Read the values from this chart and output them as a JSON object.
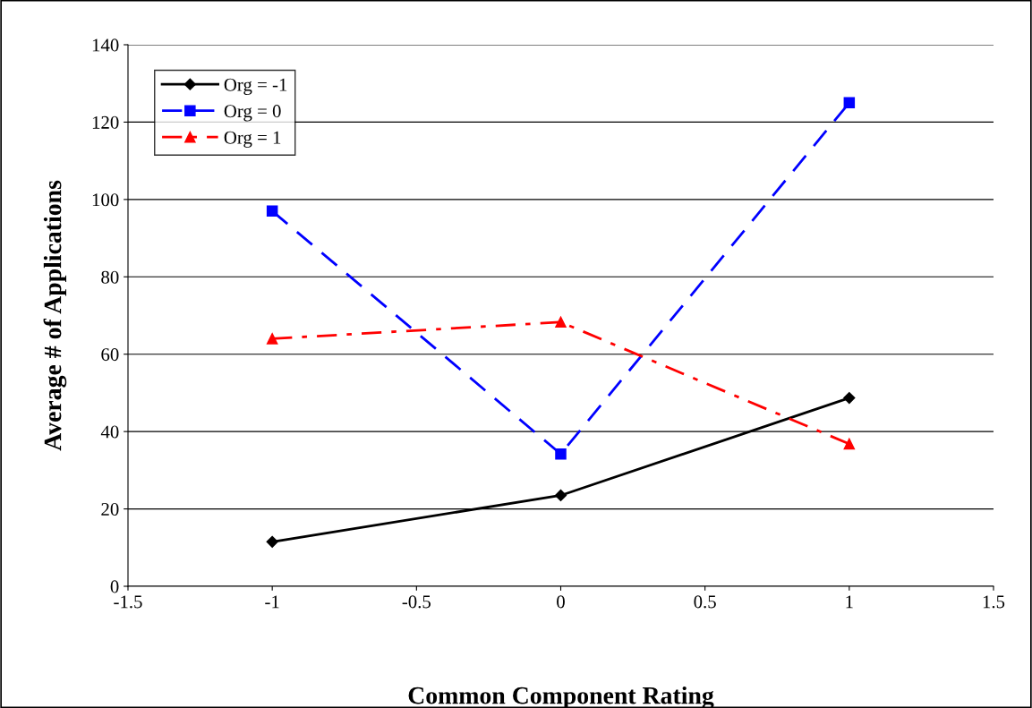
{
  "chart_data": {
    "type": "line",
    "xlabel": "Common Component Rating",
    "ylabel": "Average # of Applications",
    "x": [
      -1,
      0,
      1
    ],
    "series": [
      {
        "name": "Org = -1",
        "color": "#000000",
        "values": [
          11.5,
          23.5,
          48.7
        ],
        "marker": "diamond",
        "line_style": "solid"
      },
      {
        "name": "Org = 0",
        "color": "#0000ff",
        "values": [
          97,
          34.2,
          125
        ],
        "marker": "square",
        "line_style": "dashed"
      },
      {
        "name": "Org = 1",
        "color": "#ff0000",
        "values": [
          64,
          68.3,
          36.8
        ],
        "marker": "triangle",
        "line_style": "dashdot"
      }
    ],
    "xlim": [
      -1.5,
      1.5
    ],
    "xticks": [
      -1.5,
      -1,
      -0.5,
      0,
      0.5,
      1,
      1.5
    ],
    "ylim": [
      0,
      140
    ],
    "yticks": [
      0,
      20,
      40,
      60,
      80,
      100,
      120,
      140
    ],
    "grid": "y",
    "legend": "top left"
  }
}
